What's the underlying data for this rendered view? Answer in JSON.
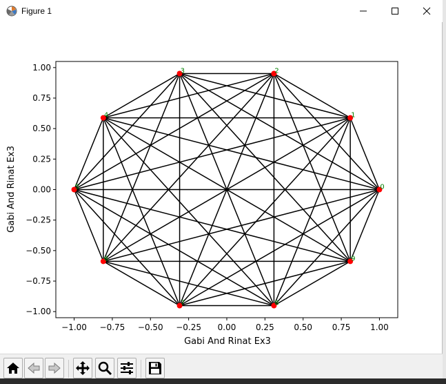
{
  "window": {
    "title": "Figure 1"
  },
  "toolbar": {
    "buttons": [
      {
        "name": "home-button",
        "icon": "home-icon"
      },
      {
        "name": "back-button",
        "icon": "back-arrow-icon"
      },
      {
        "name": "forward-button",
        "icon": "forward-arrow-icon"
      },
      {
        "name": "pan-button",
        "icon": "move-icon"
      },
      {
        "name": "zoom-button",
        "icon": "magnifier-icon"
      },
      {
        "name": "configure-subplots-button",
        "icon": "sliders-icon"
      },
      {
        "name": "save-button",
        "icon": "floppy-disk-icon"
      }
    ]
  },
  "chart_data": {
    "type": "scatter",
    "subtype": "complete-graph",
    "xlabel": "Gabi And Rinat Ex3",
    "ylabel": "Gabi And Rinat Ex3",
    "xlim": [
      -1.12,
      1.12
    ],
    "ylim": [
      -1.05,
      1.05
    ],
    "xticks": [
      "−1.00",
      "−0.75",
      "−0.50",
      "−0.25",
      "0.00",
      "0.25",
      "0.50",
      "0.75",
      "1.00"
    ],
    "yticks": [
      "−1.00",
      "−0.75",
      "−0.50",
      "−0.25",
      "0.00",
      "0.25",
      "0.50",
      "0.75",
      "1.00"
    ],
    "xtick_values": [
      -1,
      -0.75,
      -0.5,
      -0.25,
      0,
      0.25,
      0.5,
      0.75,
      1
    ],
    "ytick_values": [
      -1,
      -0.75,
      -0.5,
      -0.25,
      0,
      0.25,
      0.5,
      0.75,
      1
    ],
    "grid": false,
    "nodes": [
      {
        "label": "0",
        "x": 1.0,
        "y": 0.0
      },
      {
        "label": "1",
        "x": 0.809,
        "y": 0.588
      },
      {
        "label": "2",
        "x": 0.309,
        "y": 0.951
      },
      {
        "label": "3",
        "x": -0.309,
        "y": 0.951
      },
      {
        "label": "4",
        "x": -0.809,
        "y": 0.588
      },
      {
        "label": "5",
        "x": -1.0,
        "y": 0.0
      },
      {
        "label": "6",
        "x": -0.809,
        "y": -0.588
      },
      {
        "label": "7",
        "x": -0.309,
        "y": -0.951
      },
      {
        "label": "8",
        "x": 0.309,
        "y": -0.951
      },
      {
        "label": "9",
        "x": 0.809,
        "y": -0.588
      }
    ],
    "edges": "all-pairs",
    "colors": {
      "node": "#ff0000",
      "edge": "#000000",
      "label": "#008000"
    }
  }
}
